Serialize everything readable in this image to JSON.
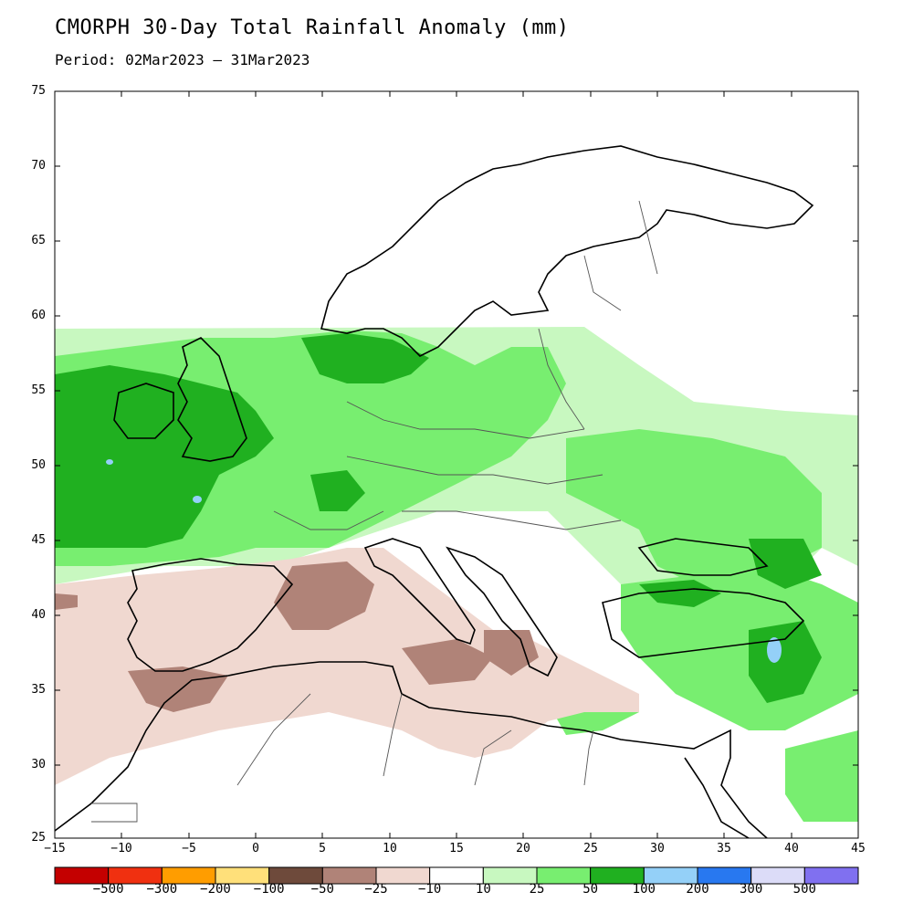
{
  "header": {
    "title": "CMORPH 30-Day Total Rainfall Anomaly (mm)",
    "period": "Period: 02Mar2023 – 31Mar2023"
  },
  "axes": {
    "y_ticks": [
      "75",
      "70",
      "65",
      "60",
      "55",
      "50",
      "45",
      "40",
      "35",
      "30",
      "25"
    ],
    "x_ticks": [
      "−15",
      "−10",
      "−5",
      "0",
      "5",
      "10",
      "15",
      "20",
      "25",
      "30",
      "35",
      "40",
      "45"
    ],
    "lat_range": [
      25,
      75
    ],
    "lon_range": [
      -15,
      45
    ]
  },
  "colorbar": {
    "colors": [
      "#c40000",
      "#f03010",
      "#ff9d00",
      "#ffe07a",
      "#6e4a3b",
      "#b08378",
      "#f0d8d0",
      "#ffffff",
      "#c8f8c0",
      "#78ee70",
      "#20b020",
      "#94d0f8",
      "#2878f0",
      "#dcdcf8",
      "#8070f0"
    ],
    "labels": [
      "−500",
      "−300",
      "−200",
      "−100",
      "−50",
      "−25",
      "−10",
      "10",
      "25",
      "50",
      "100",
      "200",
      "300",
      "500"
    ]
  },
  "legend_colors": {
    "light_green": "#c8f8c0",
    "mid_green": "#78ee70",
    "dark_green": "#20b020",
    "light_brown": "#f0d8d0",
    "mid_brown": "#b08378",
    "blue": "#94d0f8"
  }
}
